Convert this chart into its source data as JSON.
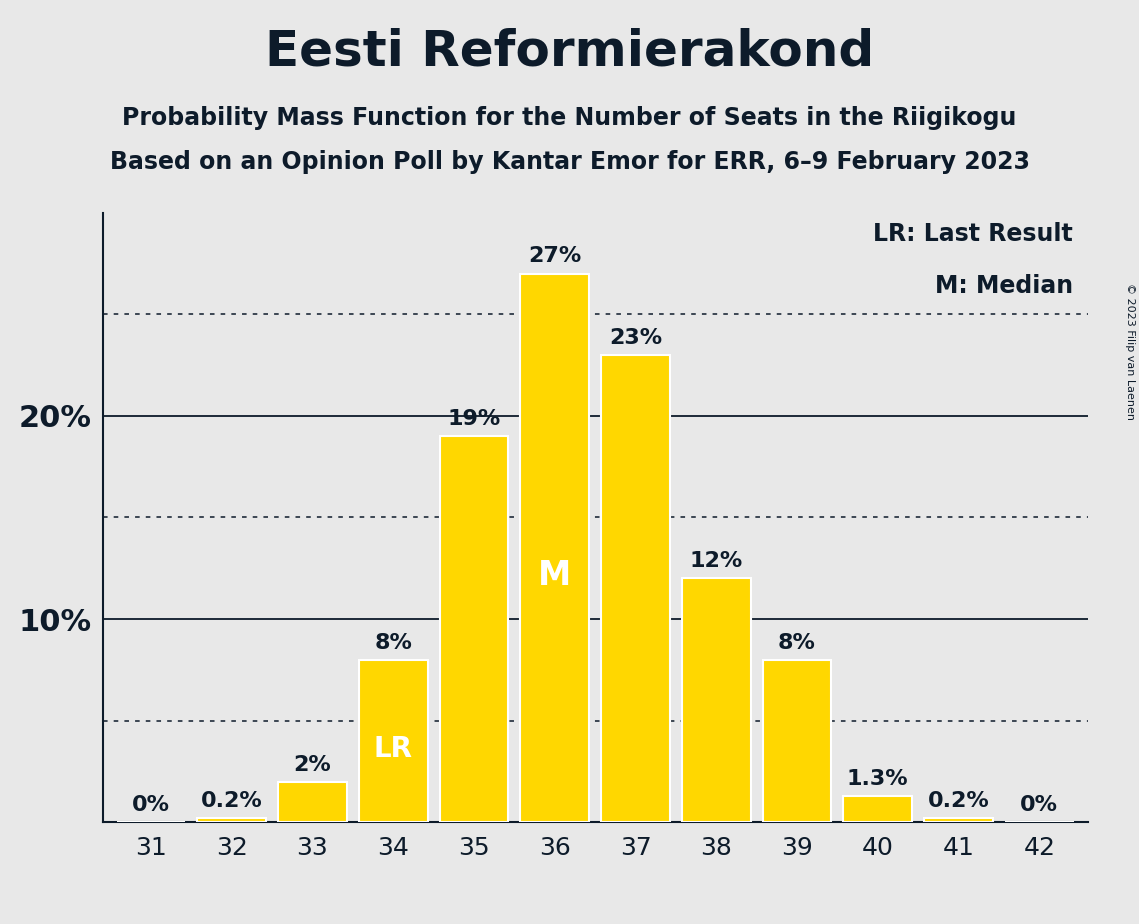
{
  "title": "Eesti Reformierakond",
  "subtitle1": "Probability Mass Function for the Number of Seats in the Riigikogu",
  "subtitle2": "Based on an Opinion Poll by Kantar Emor for ERR, 6–9 February 2023",
  "copyright": "© 2023 Filip van Laenen",
  "seats": [
    31,
    32,
    33,
    34,
    35,
    36,
    37,
    38,
    39,
    40,
    41,
    42
  ],
  "probabilities": [
    0.0,
    0.2,
    2.0,
    8.0,
    19.0,
    27.0,
    23.0,
    12.0,
    8.0,
    1.3,
    0.2,
    0.0
  ],
  "bar_color": "#FFD700",
  "bar_edgecolor": "#FFFFFF",
  "background_color": "#E8E8E8",
  "text_color": "#0D1B2A",
  "median_seat": 36,
  "last_result_seat": 34,
  "label_LR": "LR",
  "label_M": "M",
  "label_color": "#FFFFFF",
  "legend_LR": "LR: Last Result",
  "legend_M": "M: Median",
  "solid_yticks": [
    10,
    20
  ],
  "dotted_yticks": [
    5,
    15,
    25
  ],
  "ylim": [
    0,
    30
  ],
  "title_fontsize": 36,
  "subtitle_fontsize": 17,
  "bar_label_fontsize": 16,
  "axis_tick_fontsize": 18,
  "ytick_fontsize": 22,
  "legend_fontsize": 17,
  "lr_label_fontsize": 20,
  "m_label_fontsize": 24
}
